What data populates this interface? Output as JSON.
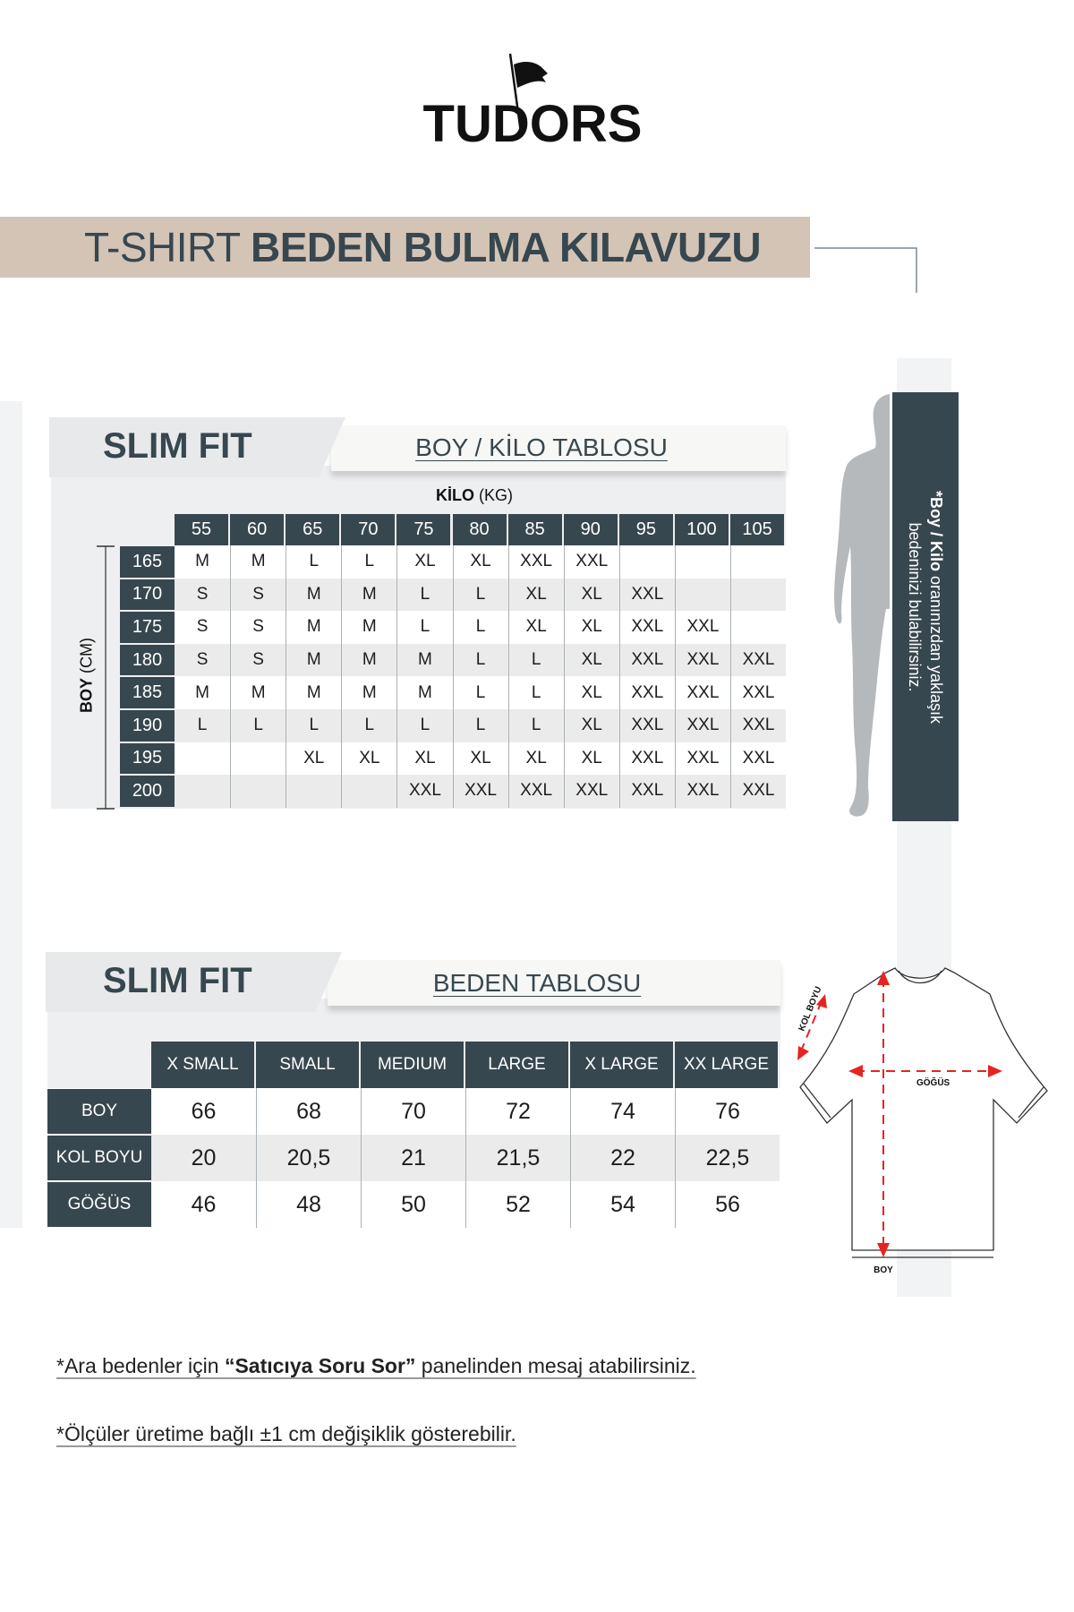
{
  "brand": {
    "logo_text": "TUDORS"
  },
  "banner": {
    "title_light": "T-SHIRT",
    "title_bold": "BEDEN BULMA KILAVUZU"
  },
  "colors": {
    "dark": "#37474f",
    "beige": "#d4c4b5",
    "light_gray": "#eeeff0",
    "arrow_red": "#e52421",
    "silhouette": "#b5b9bc"
  },
  "weight_table": {
    "tab_label": "SLIM FIT",
    "subtitle": "BOY / KİLO TABLOSU",
    "kilo_label_bold": "KİLO",
    "kilo_label_unit": "(KG)",
    "boy_label_bold": "BOY",
    "boy_label_unit": "(CM)",
    "weights": [
      "55",
      "60",
      "65",
      "70",
      "75",
      "80",
      "85",
      "90",
      "95",
      "100",
      "105"
    ],
    "rows": [
      {
        "height": "165",
        "sizes": [
          "M",
          "M",
          "L",
          "L",
          "XL",
          "XL",
          "XXL",
          "XXL",
          "",
          "",
          ""
        ]
      },
      {
        "height": "170",
        "sizes": [
          "S",
          "S",
          "M",
          "M",
          "L",
          "L",
          "XL",
          "XL",
          "XXL",
          "",
          ""
        ]
      },
      {
        "height": "175",
        "sizes": [
          "S",
          "S",
          "M",
          "M",
          "L",
          "L",
          "XL",
          "XL",
          "XXL",
          "XXL",
          ""
        ]
      },
      {
        "height": "180",
        "sizes": [
          "S",
          "S",
          "M",
          "M",
          "M",
          "L",
          "L",
          "XL",
          "XXL",
          "XXL",
          "XXL"
        ]
      },
      {
        "height": "185",
        "sizes": [
          "M",
          "M",
          "M",
          "M",
          "M",
          "L",
          "L",
          "XL",
          "XXL",
          "XXL",
          "XXL"
        ]
      },
      {
        "height": "190",
        "sizes": [
          "L",
          "L",
          "L",
          "L",
          "L",
          "L",
          "L",
          "XL",
          "XXL",
          "XXL",
          "XXL"
        ]
      },
      {
        "height": "195",
        "sizes": [
          "",
          "",
          "XL",
          "XL",
          "XL",
          "XL",
          "XL",
          "XL",
          "XXL",
          "XXL",
          "XXL"
        ]
      },
      {
        "height": "200",
        "sizes": [
          "",
          "",
          "",
          "",
          "XXL",
          "XXL",
          "XXL",
          "XXL",
          "XXL",
          "XXL",
          "XXL"
        ]
      }
    ]
  },
  "side_note": {
    "bold": "*Boy / Kilo",
    "line1_rest": " oranınızdan yaklaşık",
    "line2": "bedeninizi bulabilirsiniz."
  },
  "size_table": {
    "tab_label": "SLIM FIT",
    "subtitle": "BEDEN TABLOSU",
    "sizes": [
      "X SMALL",
      "SMALL",
      "MEDIUM",
      "LARGE",
      "X LARGE",
      "XX LARGE"
    ],
    "rows": [
      {
        "label": "BOY",
        "values": [
          "66",
          "68",
          "70",
          "72",
          "74",
          "76"
        ]
      },
      {
        "label": "KOL BOYU",
        "values": [
          "20",
          "20,5",
          "21",
          "21,5",
          "22",
          "22,5"
        ]
      },
      {
        "label": "GÖĞÜS",
        "values": [
          "46",
          "48",
          "50",
          "52",
          "54",
          "56"
        ]
      }
    ]
  },
  "tshirt_diagram": {
    "sleeve_label": "KOL BOYU",
    "chest_label": "GÖĞÜS",
    "length_label": "BOY"
  },
  "footnotes": {
    "note1_pre": "*Ara bedenler için ",
    "note1_bold": "“Satıcıya Soru Sor”",
    "note1_post": " panelinden mesaj atabilirsiniz.",
    "note2": "*Ölçüler üretime bağlı ±1 cm değişiklik gösterebilir."
  }
}
